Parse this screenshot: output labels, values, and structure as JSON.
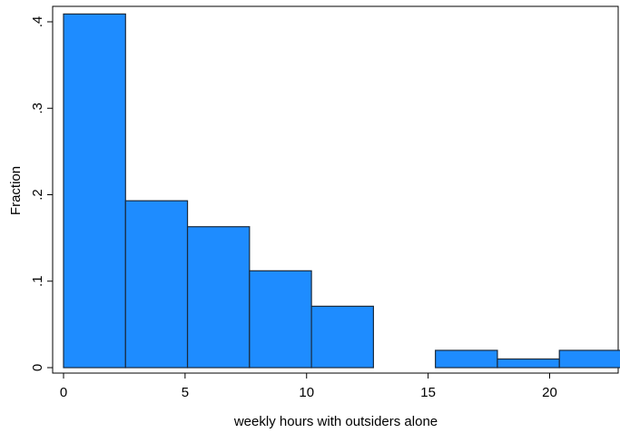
{
  "chart_data": {
    "type": "bar",
    "title": "",
    "xlabel": "weekly hours with outsiders alone",
    "ylabel": "Fraction",
    "xlim": [
      -0.5,
      23
    ],
    "ylim": [
      0,
      0.41
    ],
    "x_ticks": [
      0,
      5,
      10,
      15,
      20
    ],
    "x_tick_labels": [
      "0",
      "5",
      "10",
      "15",
      "20"
    ],
    "y_ticks": [
      0,
      0.1,
      0.2,
      0.3,
      0.4
    ],
    "y_tick_labels": [
      "0",
      ".1",
      ".2",
      ".3",
      ".4"
    ],
    "grid": false,
    "bins": [
      {
        "start": 0.0,
        "end": 2.55,
        "value": 0.409
      },
      {
        "start": 2.55,
        "end": 5.1,
        "value": 0.193
      },
      {
        "start": 5.1,
        "end": 7.65,
        "value": 0.163
      },
      {
        "start": 7.65,
        "end": 10.2,
        "value": 0.112
      },
      {
        "start": 10.2,
        "end": 12.75,
        "value": 0.071
      },
      {
        "start": 15.3,
        "end": 17.85,
        "value": 0.02
      },
      {
        "start": 17.85,
        "end": 20.4,
        "value": 0.01
      },
      {
        "start": 20.4,
        "end": 22.95,
        "value": 0.02
      }
    ],
    "bar_fill": "#1e8cff",
    "bar_stroke": "#1a2a3c"
  }
}
